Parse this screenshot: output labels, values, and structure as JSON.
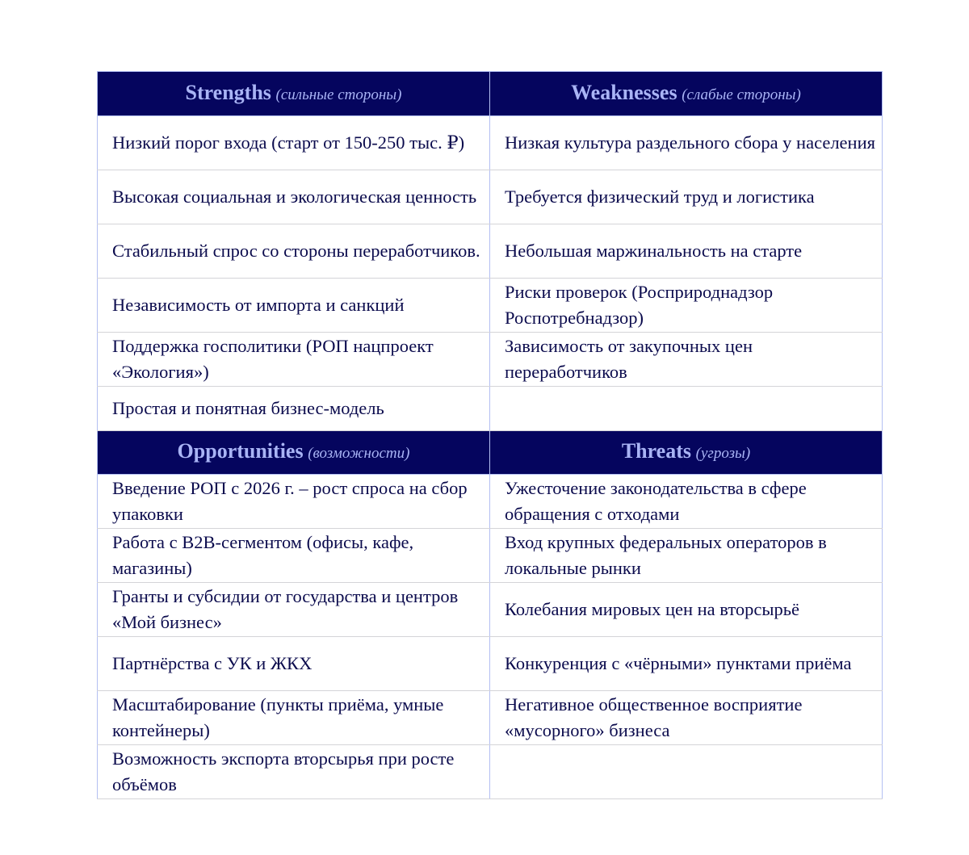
{
  "sections": [
    {
      "left": {
        "title": "Strengths",
        "subtitle": "(сильные стороны)"
      },
      "right": {
        "title": "Weaknesses",
        "subtitle": "(слабые стороны)"
      },
      "rows": [
        [
          "Низкий порог входа (старт от 150-250 тыс. ₽)",
          "Низкая культура раздельного сбора у населения"
        ],
        [
          "Высокая социальная и экологическая ценность",
          "Требуется физический труд и логистика"
        ],
        [
          "Стабильный спрос со стороны переработчиков.",
          "Небольшая маржинальность на старте"
        ],
        [
          "Независимость от импорта и санкций",
          "Риски проверок (Росприроднадзор Роспотребнадзор)"
        ],
        [
          "Поддержка госполитики (РОП нацпроект «Экология»)",
          "Зависимость от закупочных цен переработчиков"
        ],
        [
          "Простая и понятная бизнес-модель",
          ""
        ]
      ]
    },
    {
      "left": {
        "title": "Opportunities",
        "subtitle": "(возможности)"
      },
      "right": {
        "title": "Threats",
        "subtitle": "(угрозы)"
      },
      "rows": [
        [
          "Введение РОП с 2026 г. – рост спроса на сбор упаковки",
          "Ужесточение законодательства в сфере обращения с отходами"
        ],
        [
          "Работа с B2B-сегментом (офисы, кафе, магазины)",
          "Вход крупных федеральных операторов в локальные рынки"
        ],
        [
          "Гранты и субсидии от государства и центров «Мой бизнес»",
          "Колебания мировых цен на вторсырьё"
        ],
        [
          "Партнёрства с УК и ЖКХ",
          "Конкуренция с «чёрными» пунктами приёма"
        ],
        [
          "Масштабирование (пункты приёма, умные контейнеры)",
          "Негативное общественное восприятие «мусорного» бизнеса"
        ],
        [
          "Возможность экспорта вторсырья при росте объёмов",
          ""
        ]
      ]
    }
  ],
  "colors": {
    "header_bg": "#05055e",
    "header_text": "#a9b4f5",
    "body_text": "#0b0b4d"
  }
}
